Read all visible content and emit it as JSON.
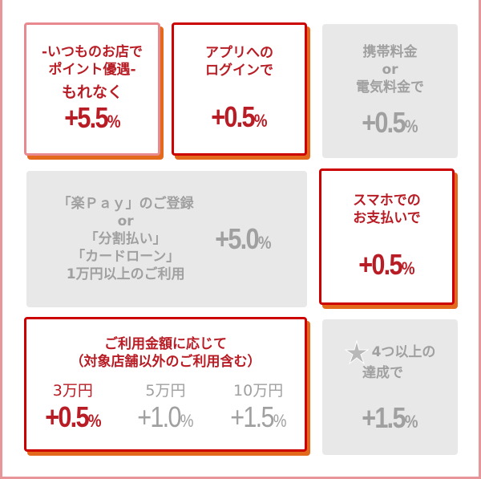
{
  "cards": [
    {
      "lines": [
        "-いつものお店で",
        "ポイント優遇-",
        "もれなく"
      ],
      "rate": "+5.5",
      "unit": "%",
      "active": true
    },
    {
      "lines": [
        "アプリへの",
        "ログインで"
      ],
      "rate": "+0.5",
      "unit": "%",
      "active": true
    },
    {
      "lines": [
        "携帯料金",
        "or",
        "電気料金で"
      ],
      "rate": "+0.5",
      "unit": "%",
      "active": false
    },
    {
      "lines": [
        "「楽Ｐａｙ」のご登録",
        "or",
        "「分割払い」",
        "「カードローン」",
        "1万円以上のご利用"
      ],
      "rate": "+5.0",
      "unit": "%",
      "active": false
    },
    {
      "lines": [
        "スマホでの",
        "お支払いで"
      ],
      "rate": "+0.5",
      "unit": "%",
      "active": true
    },
    {
      "lines": [
        "ご利用金額に応じて",
        "（対象店舗以外のご利用含む）"
      ],
      "tiers": [
        {
          "amount": "3万円",
          "rate": "+0.5",
          "unit": "%",
          "active": true
        },
        {
          "amount": "5万円",
          "rate": "+1.0",
          "unit": "%",
          "active": false
        },
        {
          "amount": "10万円",
          "rate": "+1.5",
          "unit": "%",
          "active": false
        }
      ],
      "active": true
    },
    {
      "icon": "star-icon",
      "lines": [
        "4つ以上の",
        "達成で"
      ],
      "rate": "+1.5",
      "unit": "%",
      "active": false
    }
  ],
  "colors": {
    "accent": "#b81c25",
    "border": "#cc0000",
    "shadow": "#e36a1c",
    "inactive": "#a0a0a0",
    "inactive_bg": "#e8e8e8"
  }
}
